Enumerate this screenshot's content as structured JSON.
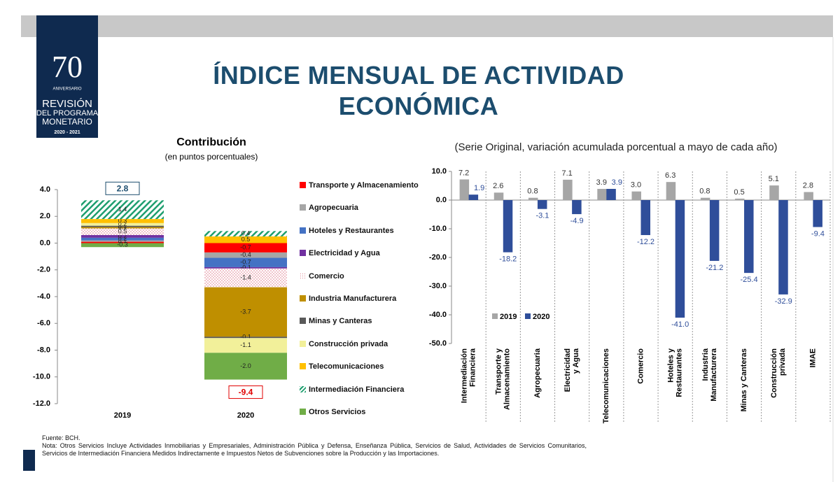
{
  "logo": {
    "number": "70",
    "subtitle": "ANIVERSARIO",
    "line1": "REVISIÓN",
    "line2": "DEL PROGRAMA",
    "line3": "MONETARIO",
    "years": "2020 - 2021"
  },
  "header": {
    "title": "ÍNDICE MENSUAL DE ACTIVIDAD ECONÓMICA"
  },
  "chart_data": [
    {
      "type": "stacked_bar",
      "title": "Contribución",
      "subtitle": "(en puntos porcentuales)",
      "categories": [
        "2019",
        "2020"
      ],
      "ylim": [
        -12,
        4
      ],
      "yticks": [
        {
          "value": 4,
          "label": "4.0"
        },
        {
          "value": 2,
          "label": "2.0"
        },
        {
          "value": 0,
          "label": "0.0"
        },
        {
          "value": -2,
          "label": "-2.0"
        },
        {
          "value": -4,
          "label": "-4.0"
        },
        {
          "value": -6,
          "label": "-6.0"
        },
        {
          "value": -8,
          "label": "-8.0"
        },
        {
          "value": -10,
          "label": "-10.0"
        },
        {
          "value": -12,
          "label": "-12.0"
        }
      ],
      "totals": [
        2.8,
        -9.4
      ],
      "total_colors": [
        "#1c4d6e",
        "#e00000"
      ],
      "series": [
        {
          "name": "Transporte y Almacenamiento",
          "color": "#ff0000",
          "values": [
            0.1,
            -0.7
          ]
        },
        {
          "name": "Agropecuaria",
          "color": "#a6a6a6",
          "values": [
            0.1,
            -0.4
          ]
        },
        {
          "name": "Hoteles y Restaurantes",
          "color": "#4472c4",
          "values": [
            0.2,
            -0.7
          ]
        },
        {
          "name": "Electricidad y Agua",
          "color": "#7030a0",
          "values": [
            0.2,
            -0.1
          ]
        },
        {
          "name": "Comercio",
          "color": "#e07f8f",
          "pattern": "dots",
          "values": [
            0.5,
            -1.4
          ]
        },
        {
          "name": "Industria Manufacturera",
          "color": "#bf8f00",
          "values": [
            0.1,
            -3.7
          ]
        },
        {
          "name": "Minas y Canteras",
          "color": "#595959",
          "values": [
            0.1,
            -0.1
          ]
        },
        {
          "name": "Construcción privada",
          "color": "#f2f09a",
          "values": [
            0.2,
            -1.1
          ]
        },
        {
          "name": "Telecomunicaciones",
          "color": "#ffc000",
          "values": [
            0.3,
            0.5
          ]
        },
        {
          "name": "Intermediación Financiera",
          "color": "#1e9e6e",
          "pattern": "hatch",
          "values": [
            1.4,
            0.4
          ]
        },
        {
          "name": "Otros Servicios",
          "color": "#70ad47",
          "values": [
            -0.3,
            -2.0
          ],
          "value_labels": [
            "-0.3",
            "-2.0"
          ]
        }
      ]
    },
    {
      "type": "bar",
      "subtitle": "(Serie Original, variación acumulada porcentual a mayo de cada año)",
      "categories": [
        [
          "Intermediación",
          "Financiera"
        ],
        [
          "Transporte y",
          "Almacenamiento"
        ],
        [
          "Agropecuaria"
        ],
        [
          "Electricidad",
          "y Agua"
        ],
        [
          "Telecomunicaciones"
        ],
        [
          "Comercio"
        ],
        [
          "Hoteles y",
          "Restaurantes"
        ],
        [
          "Industria",
          "Manufacturera"
        ],
        [
          "Minas y Canteras"
        ],
        [
          "Construcción",
          "privada"
        ],
        [
          "IMAE"
        ]
      ],
      "ylim": [
        -50,
        10
      ],
      "yticks": [
        {
          "value": 10,
          "label": "10.0"
        },
        {
          "value": 0,
          "label": "0.0"
        },
        {
          "value": -10,
          "label": "-10.0"
        },
        {
          "value": -20,
          "label": "-20.0"
        },
        {
          "value": -30,
          "label": "-30.0"
        },
        {
          "value": -40,
          "label": "-40.0"
        },
        {
          "value": -50,
          "label": "-50.0"
        }
      ],
      "series": [
        {
          "name": "2019",
          "color": "#a6a6a6",
          "label_color": "#333333",
          "values": [
            7.2,
            2.6,
            0.8,
            7.1,
            3.9,
            3.0,
            6.3,
            0.8,
            0.5,
            5.1,
            2.8
          ],
          "value_labels": [
            "7.2",
            "2.6",
            "0.8",
            "7.1",
            "3.9",
            "3.0",
            "6.3",
            "0.8",
            "0.5",
            "5.1",
            "2.8"
          ]
        },
        {
          "name": "2020",
          "color": "#2f4e9a",
          "label_color": "#2f4e9a",
          "values": [
            1.9,
            -18.2,
            -3.1,
            -4.9,
            3.9,
            -12.2,
            -41.0,
            -21.2,
            -25.4,
            -32.9,
            -9.4
          ],
          "value_labels": [
            "1.9",
            "-18.2",
            "-3.1",
            "-4.9",
            "3.9",
            "-12.2",
            "-41.0",
            "-21.2",
            "-25.4",
            "-32.9",
            "-9.4"
          ]
        }
      ]
    }
  ],
  "footer": {
    "source": "Fuente: BCH.",
    "note": "Nota: Otros Servicios Incluye Actividades Inmobiliarias y Empresariales, Administración Pública y Defensa, Enseñanza Pública, Servicios de Salud, Actividades de Servicios Comunitarios, Servicios de Intermediación Financiera Medidos Indirectamente e Impuestos Netos de Subvenciones sobre la Producción y las Importaciones."
  }
}
